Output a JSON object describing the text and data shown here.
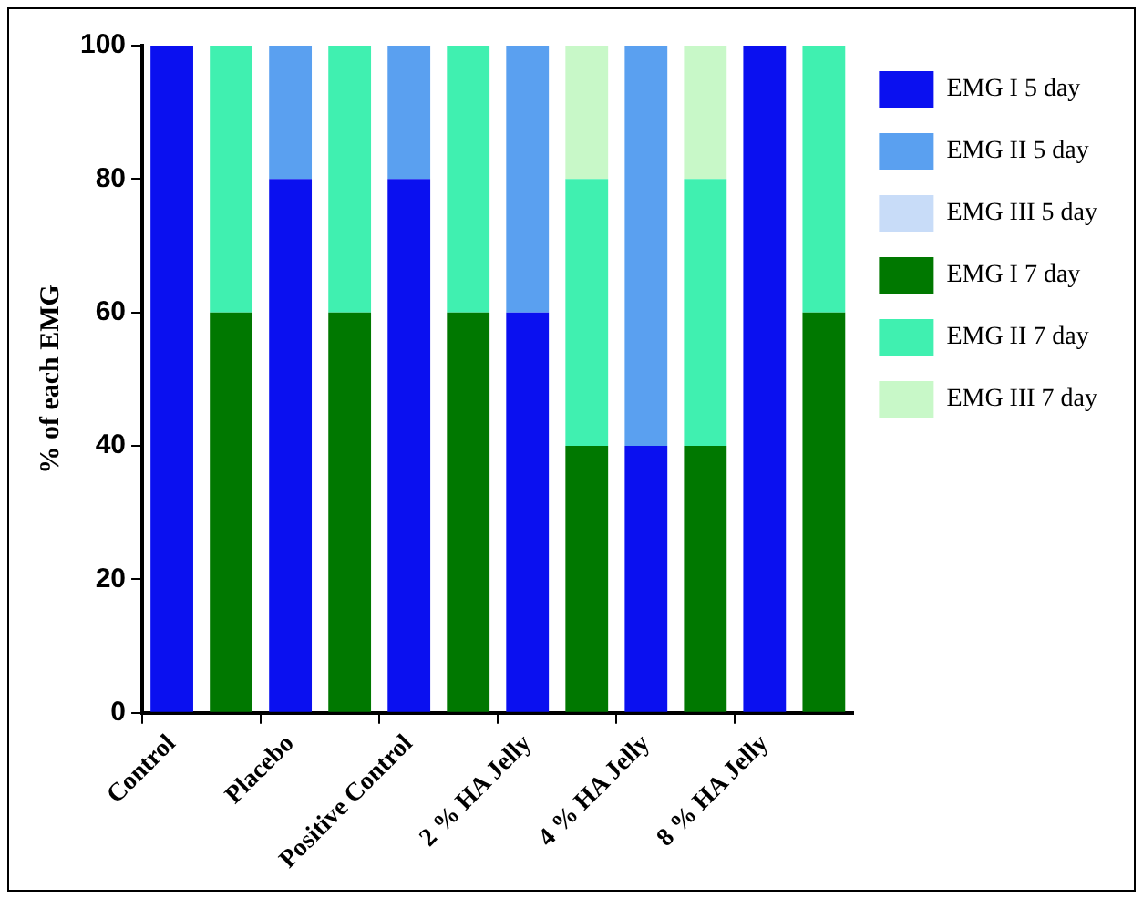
{
  "chart_data": {
    "type": "bar",
    "stacked": true,
    "ylabel": "% of each EMG",
    "categories": [
      "Control",
      null,
      "Placebo",
      null,
      "Positive Control",
      null,
      "2 % HA Jelly",
      null,
      "4 % HA Jelly",
      null,
      "8 % HA Jelly",
      null
    ],
    "series": [
      {
        "name": "EMG I 5 day",
        "color": "#0a10f0",
        "values": [
          100,
          null,
          80,
          null,
          80,
          null,
          60,
          null,
          40,
          null,
          100,
          null
        ]
      },
      {
        "name": "EMG II 5 day",
        "color": "#5aa0f0",
        "values": [
          0,
          null,
          20,
          null,
          20,
          null,
          40,
          null,
          60,
          null,
          0,
          null
        ]
      },
      {
        "name": "EMG III 5 day",
        "color": "#c8dcf8",
        "values": [
          0,
          null,
          0,
          null,
          0,
          null,
          0,
          null,
          0,
          null,
          0,
          null
        ]
      },
      {
        "name": "EMG I 7 day",
        "color": "#007800",
        "values": [
          null,
          60,
          null,
          60,
          null,
          60,
          null,
          40,
          null,
          40,
          null,
          60
        ]
      },
      {
        "name": "EMG II 7 day",
        "color": "#40f0b0",
        "values": [
          null,
          40,
          null,
          40,
          null,
          40,
          null,
          40,
          null,
          40,
          null,
          40
        ]
      },
      {
        "name": "EMG III 7 day",
        "color": "#c8f8c8",
        "values": [
          null,
          0,
          null,
          0,
          null,
          0,
          null,
          20,
          null,
          20,
          null,
          0
        ]
      }
    ],
    "ylim": [
      0,
      100
    ],
    "yticks": [
      0,
      20,
      40,
      60,
      80,
      100
    ],
    "grid": false,
    "legend": "right"
  }
}
